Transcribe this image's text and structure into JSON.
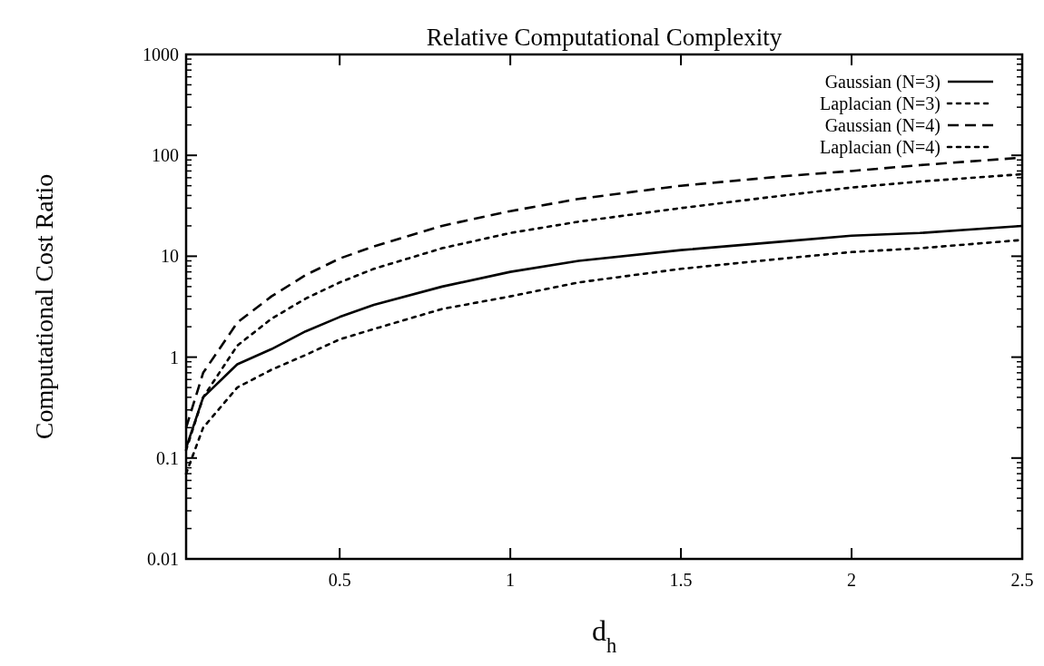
{
  "chart_data": {
    "type": "line",
    "title": "Relative Computational Complexity",
    "xlabel": "d$_{h}$",
    "ylabel": "Computational Cost Ratio",
    "log": "y",
    "legend": "top right",
    "grid": false,
    "xlim": [
      0.05,
      2.5
    ],
    "xticks": [
      0.5,
      1,
      1.5,
      2,
      2.5
    ],
    "ylim": [
      0.01,
      1000
    ],
    "yticks": [
      0.01,
      0.1,
      1,
      10,
      100,
      1000
    ],
    "x": [
      0.05,
      0.1,
      0.2,
      0.3,
      0.4,
      0.5,
      0.6,
      0.8,
      1.0,
      1.2,
      1.5,
      1.8,
      2.0,
      2.2,
      2.5
    ],
    "series": [
      {
        "name": "Gaussian (N=3)",
        "color": "#000000",
        "line_style": "solid",
        "values": [
          0.126,
          0.4,
          0.85,
          1.2,
          1.8,
          2.5,
          3.3,
          5,
          7,
          9,
          11.5,
          14,
          16,
          17,
          20
        ]
      },
      {
        "name": "Laplacian (N=3)",
        "color": "#000000",
        "line_style": "dotted",
        "values": [
          0.07,
          0.2,
          0.5,
          0.75,
          1.05,
          1.5,
          1.9,
          3,
          4,
          5.5,
          7.5,
          9.5,
          11,
          12,
          14.5
        ]
      },
      {
        "name": "Gaussian (N=4)",
        "color": "#000000",
        "line_style": "dashed",
        "values": [
          0.2,
          0.7,
          2.2,
          4,
          6.5,
          9.5,
          12.5,
          20,
          28,
          37,
          50,
          62,
          70,
          80,
          95
        ]
      },
      {
        "name": "Laplacian (N=4)",
        "color": "#000000",
        "line_style": "dotted",
        "values": [
          0.12,
          0.4,
          1.3,
          2.4,
          3.8,
          5.5,
          7.5,
          12,
          17,
          22,
          30,
          40,
          48,
          55,
          65
        ]
      }
    ]
  }
}
